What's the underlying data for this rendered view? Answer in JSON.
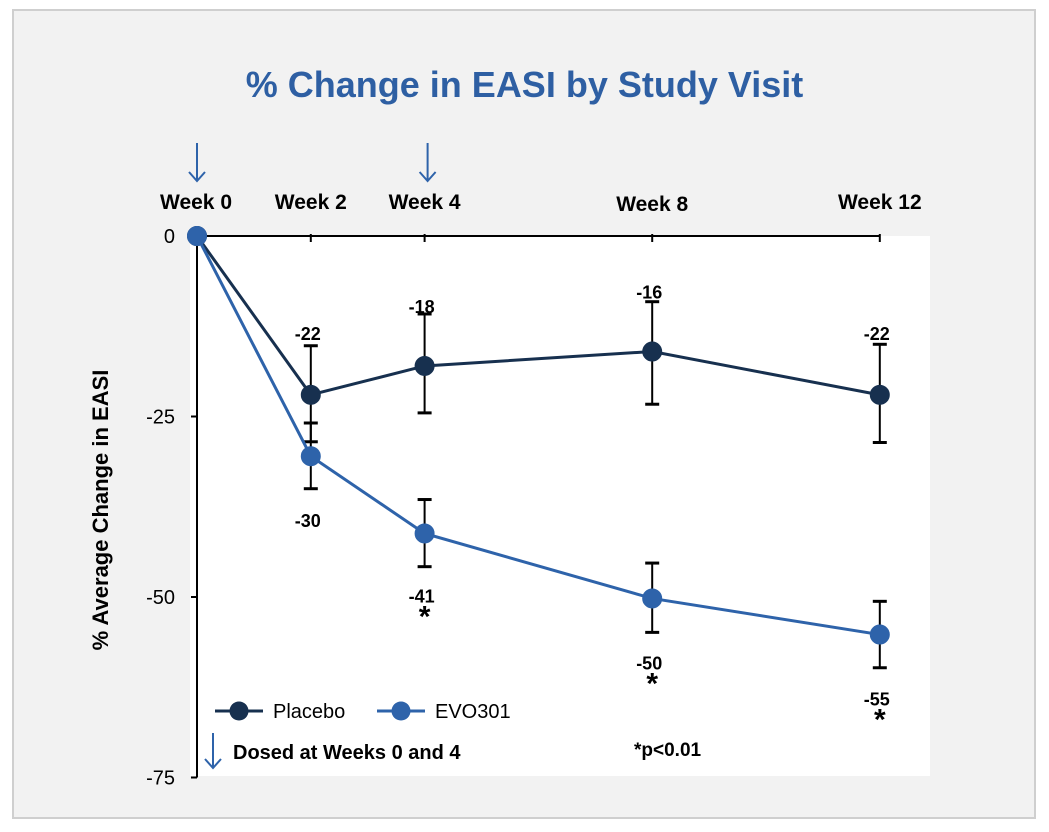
{
  "chart_data": {
    "type": "line",
    "title": "% Change in EASI by Study Visit",
    "ylabel": "% Average Change in EASI",
    "xlabel": "",
    "categories": [
      "Week 0",
      "Week 2",
      "Week 4",
      "Week 8",
      "Week 12"
    ],
    "x": [
      0,
      2,
      4,
      8,
      12
    ],
    "ylim": [
      -75,
      0
    ],
    "yticks": [
      0,
      -25,
      -50,
      -75
    ],
    "grid": false,
    "legend_position": "bottom-left",
    "series": [
      {
        "name": "Placebo",
        "color": "#17304f",
        "values": [
          0,
          -22,
          -18,
          -16,
          -22
        ],
        "error_low": [
          0,
          -28.5,
          -24.5,
          -23.3,
          -28.6
        ],
        "error_high": [
          0,
          -15.2,
          -10.8,
          -9.1,
          -15.0
        ],
        "labels": [
          "",
          "-22",
          "-18",
          "-16",
          "-22"
        ]
      },
      {
        "name": "EVO301",
        "color": "#2e63aa",
        "values": [
          0,
          -30.5,
          -41.2,
          -50.2,
          -55.2
        ],
        "error_low": [
          0,
          -35,
          -45.8,
          -54.9,
          -59.8
        ],
        "error_high": [
          0,
          -25.9,
          -36.5,
          -45.3,
          -50.6
        ],
        "labels": [
          "",
          "-30",
          "-41",
          "-50",
          "-55"
        ],
        "significant": [
          false,
          false,
          true,
          true,
          true
        ]
      }
    ],
    "dosing_weeks": [
      0,
      4
    ],
    "dosing_arrow_color": "#2e63aa",
    "dosing_note": "Dosed at Weeks 0 and 4",
    "significance_marker": "*",
    "significance_note": "*p<0.01"
  }
}
